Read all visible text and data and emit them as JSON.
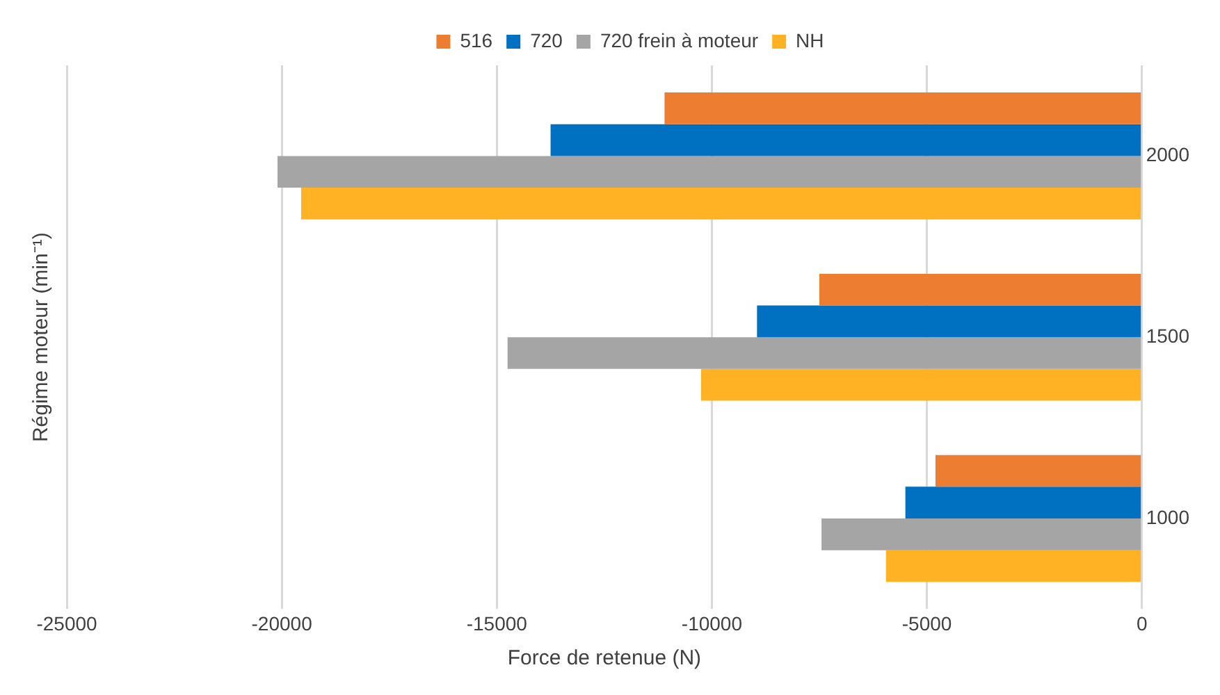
{
  "chart_data": {
    "type": "bar",
    "orientation": "horizontal",
    "categories": [
      "2000",
      "1500",
      "1000"
    ],
    "series": [
      {
        "name": "516",
        "color": "#ed7d31",
        "values": [
          -11100,
          -7500,
          -4800
        ]
      },
      {
        "name": "720",
        "color": "#0070c0",
        "values": [
          -13750,
          -8950,
          -5500
        ]
      },
      {
        "name": "720 frein à moteur",
        "color": "#a5a5a5",
        "values": [
          -20100,
          -14750,
          -7450
        ]
      },
      {
        "name": "NH",
        "color": "#ffb324",
        "values": [
          -19550,
          -10250,
          -5950
        ]
      }
    ],
    "xlabel": "Force de retenue (N)",
    "ylabel": "Régime moteur (min⁻¹)",
    "xlim": [
      -25000,
      0
    ],
    "xticks": [
      -25000,
      -20000,
      -15000,
      -10000,
      -5000,
      0
    ],
    "grid": "x",
    "legend": "top"
  }
}
